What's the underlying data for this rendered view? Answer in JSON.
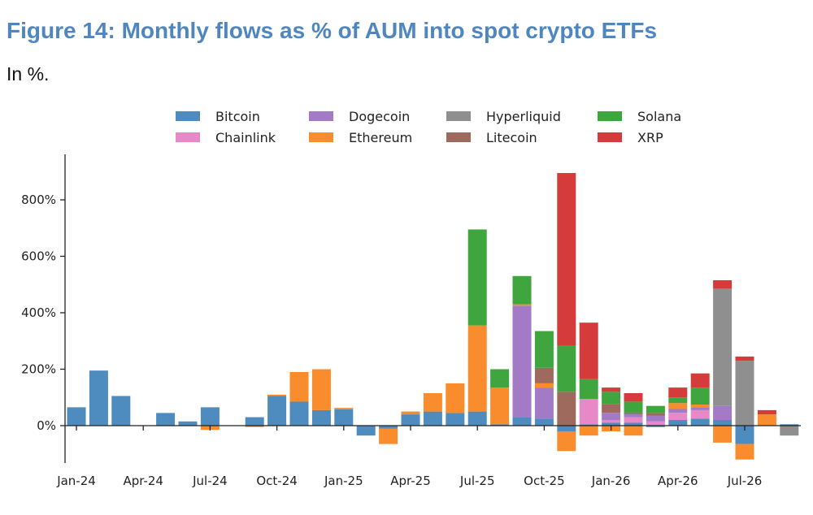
{
  "title": "Figure 14: Monthly flows as % of AUM into spot crypto ETFs",
  "subtitle": "In %.",
  "chart_data": {
    "type": "bar",
    "stacked": true,
    "ylim": [
      -150,
      930
    ],
    "ytick_values": [
      0,
      200,
      400,
      600,
      800
    ],
    "ytick_labels": [
      "0%",
      "200%",
      "400%",
      "600%",
      "800%"
    ],
    "xtick_labels": [
      "Jan-24",
      "Apr-24",
      "Jul-24",
      "Oct-24",
      "Jan-25",
      "Apr-25",
      "Jul-25",
      "Oct-25",
      "Jan-26",
      "Apr-26",
      "Jul-26"
    ],
    "xtick_index": [
      0,
      3,
      6,
      9,
      12,
      15,
      18,
      21,
      24,
      27,
      30
    ],
    "categories": [
      "Jan-24",
      "Feb-24",
      "Mar-24",
      "Apr-24",
      "May-24",
      "Jun-24",
      "Jul-24",
      "Aug-24",
      "Sep-24",
      "Oct-24",
      "Nov-24",
      "Dec-24",
      "Jan-25",
      "Feb-25",
      "Mar-25",
      "Apr-25",
      "May-25",
      "Jun-25",
      "Jul-25",
      "Aug-25",
      "Sep-25",
      "Oct-25",
      "Nov-25",
      "Dec-25",
      "Jan-26",
      "Feb-26",
      "Mar-26",
      "Apr-26",
      "May-26",
      "Jun-26",
      "Jul-26",
      "Aug-26",
      "Sep-26"
    ],
    "legend_position": "top",
    "series": [
      {
        "name": "Bitcoin",
        "color": "#4e8bbf",
        "values": [
          65,
          195,
          105,
          0,
          45,
          15,
          65,
          0,
          30,
          105,
          85,
          55,
          58,
          -35,
          -10,
          40,
          50,
          45,
          50,
          5,
          30,
          25,
          -20,
          5,
          10,
          10,
          -5,
          20,
          25,
          20,
          -65,
          0,
          5
        ]
      },
      {
        "name": "Chainlink",
        "color": "#e889c7",
        "values": [
          0,
          0,
          0,
          0,
          0,
          0,
          0,
          0,
          0,
          0,
          0,
          0,
          0,
          0,
          0,
          0,
          0,
          0,
          0,
          0,
          0,
          0,
          0,
          90,
          10,
          20,
          15,
          25,
          30,
          0,
          0,
          0,
          0
        ]
      },
      {
        "name": "Dogecoin",
        "color": "#a27ac6",
        "values": [
          0,
          0,
          0,
          0,
          0,
          0,
          0,
          0,
          0,
          0,
          0,
          0,
          0,
          0,
          0,
          0,
          0,
          0,
          0,
          0,
          395,
          110,
          0,
          0,
          25,
          10,
          20,
          15,
          10,
          50,
          0,
          0,
          0
        ]
      },
      {
        "name": "Ethereum",
        "color": "#f98c2c",
        "values": [
          0,
          0,
          0,
          0,
          0,
          0,
          -15,
          0,
          -5,
          5,
          105,
          145,
          5,
          0,
          -55,
          10,
          65,
          105,
          305,
          130,
          5,
          15,
          -70,
          -35,
          -20,
          -35,
          0,
          20,
          10,
          -60,
          -55,
          40,
          0
        ]
      },
      {
        "name": "Hyperliquid",
        "color": "#8f8f8f",
        "values": [
          0,
          0,
          0,
          0,
          0,
          0,
          0,
          0,
          0,
          0,
          0,
          0,
          0,
          0,
          0,
          0,
          0,
          0,
          0,
          0,
          0,
          0,
          0,
          0,
          0,
          0,
          0,
          0,
          0,
          415,
          230,
          0,
          -35
        ]
      },
      {
        "name": "Litecoin",
        "color": "#9e6a5e",
        "values": [
          0,
          0,
          0,
          0,
          0,
          0,
          0,
          0,
          0,
          0,
          0,
          0,
          0,
          0,
          0,
          0,
          0,
          0,
          0,
          0,
          0,
          55,
          120,
          0,
          30,
          5,
          10,
          0,
          0,
          0,
          0,
          0,
          0
        ]
      },
      {
        "name": "Solana",
        "color": "#3fa63f",
        "values": [
          0,
          0,
          0,
          0,
          0,
          0,
          0,
          0,
          0,
          0,
          0,
          0,
          0,
          0,
          0,
          0,
          0,
          0,
          340,
          65,
          100,
          130,
          165,
          70,
          45,
          40,
          25,
          20,
          60,
          0,
          0,
          0,
          0
        ]
      },
      {
        "name": "XRP",
        "color": "#d63b3b",
        "values": [
          0,
          0,
          0,
          0,
          0,
          0,
          0,
          0,
          0,
          0,
          0,
          0,
          0,
          0,
          0,
          0,
          0,
          0,
          0,
          0,
          0,
          0,
          610,
          200,
          15,
          30,
          0,
          35,
          50,
          30,
          15,
          15,
          0
        ]
      }
    ]
  }
}
